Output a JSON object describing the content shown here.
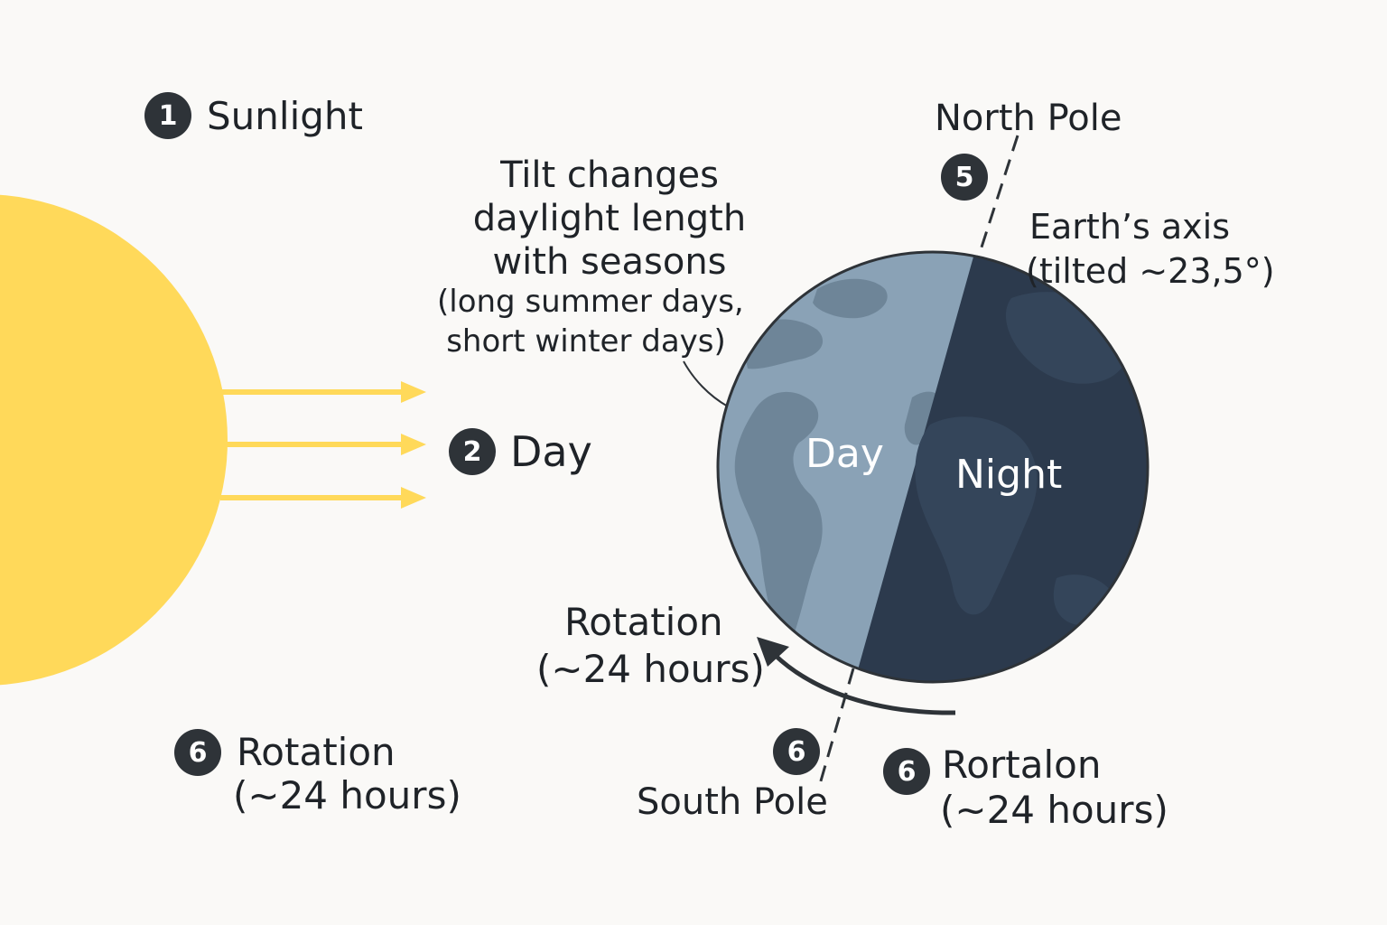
{
  "colors": {
    "sun": "#ffd95a",
    "arrow": "#ffd95a",
    "day_side": "#8aa2b6",
    "night_side": "#2c3a4d",
    "badge": "#2e3338",
    "background": "#faf9f7"
  },
  "items": {
    "sunlight": {
      "number": "1",
      "label": "Sunlight"
    },
    "day": {
      "number": "2",
      "label": "Day"
    },
    "north_pole": {
      "number": "5",
      "label": "North Pole"
    },
    "south_pole": {
      "number": "6",
      "label": "South Pole"
    },
    "rotation_left": {
      "number": "6",
      "line1": "Rotation",
      "line2": "(~24 hours)"
    },
    "rotation_right": {
      "number": "6",
      "line1": "Rortalon",
      "line2": "(~24 hours)"
    }
  },
  "earth": {
    "day_label": "Day",
    "night_label": "Night"
  },
  "axis": {
    "line1": "Earth’s axis",
    "line2": "(tilted ~23,5°)"
  },
  "tilt_note": {
    "line1": "Tilt changes",
    "line2": "daylight length",
    "line3": "with seasons",
    "line4": "(long summer days,",
    "line5": "short winter days)"
  },
  "rotation_arrow": {
    "line1": "Rotation",
    "line2": "(~24 hours)"
  }
}
